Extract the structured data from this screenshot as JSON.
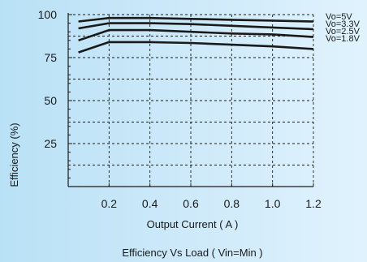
{
  "chart_data": {
    "type": "line",
    "title": "Efficiency  Vs Load ( Vin=Min )",
    "xlabel": "Output Current ( A )",
    "ylabel": "Efficiency (%)",
    "xlim": [
      0.0,
      1.2
    ],
    "ylim": [
      0,
      100
    ],
    "x_ticks": [
      0.2,
      0.4,
      0.6,
      0.8,
      1.0,
      1.2
    ],
    "x_tick_labels": [
      "0.2",
      "0.4",
      "0.6",
      "0.8",
      "1.0",
      "1.2"
    ],
    "y_ticks": [
      25,
      50,
      75,
      100
    ],
    "y_tick_labels": [
      "25",
      "50",
      "75",
      "100"
    ],
    "grid": true,
    "legend_position": "right",
    "series": [
      {
        "name": "Vo=5V",
        "x": [
          0.05,
          0.2,
          0.4,
          0.6,
          0.8,
          1.0,
          1.2
        ],
        "y": [
          96,
          98,
          98,
          97.5,
          97,
          96.5,
          96
        ]
      },
      {
        "name": "Vo=3.3V",
        "x": [
          0.05,
          0.2,
          0.4,
          0.6,
          0.8,
          1.0,
          1.2
        ],
        "y": [
          92,
          95,
          95,
          94.5,
          93.5,
          92.5,
          91.5
        ]
      },
      {
        "name": "Vo=2.5V",
        "x": [
          0.05,
          0.2,
          0.4,
          0.6,
          0.8,
          1.0,
          1.2
        ],
        "y": [
          85,
          91,
          91,
          90,
          89,
          88.5,
          87
        ]
      },
      {
        "name": "Vo=1.8V",
        "x": [
          0.05,
          0.2,
          0.4,
          0.6,
          0.8,
          1.0,
          1.2
        ],
        "y": [
          78,
          84,
          84,
          83.5,
          82.5,
          81.5,
          80
        ]
      }
    ]
  },
  "colors": {
    "line": "#1a1a1a",
    "grid": "#1a1a1a",
    "background": "#cfeafa"
  }
}
